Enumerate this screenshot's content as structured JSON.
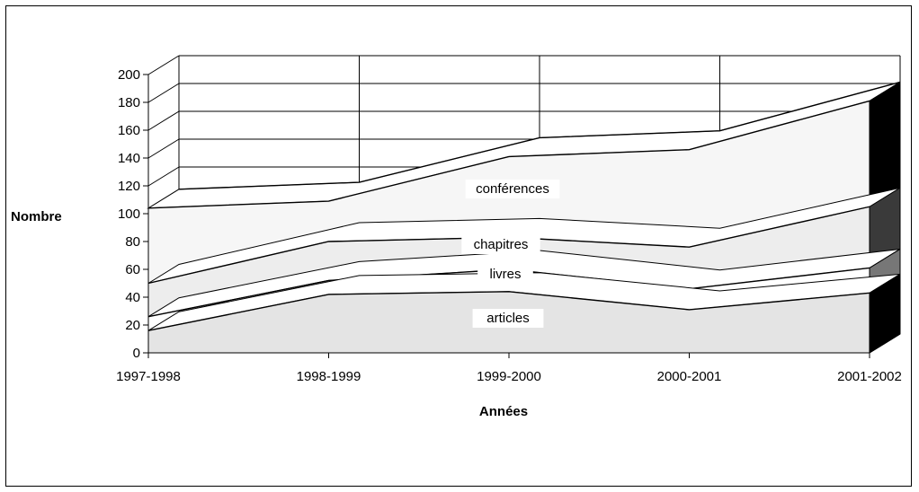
{
  "chart_data": {
    "type": "area",
    "stacked": true,
    "three_d": true,
    "categories": [
      "1997-1998",
      "1998-1999",
      "1999-2000",
      "2000-2001",
      "2001-2002"
    ],
    "series": [
      {
        "name": "articles",
        "values": [
          16,
          42,
          44,
          31,
          43
        ],
        "color": "#e4e4e4"
      },
      {
        "name": "livres",
        "values": [
          10,
          10,
          16,
          15,
          18
        ],
        "color": "#ffffff"
      },
      {
        "name": "chapitres",
        "values": [
          24,
          28,
          23,
          30,
          44
        ],
        "color": "#ededed"
      },
      {
        "name": "conférences",
        "values": [
          54,
          29,
          58,
          70,
          76
        ],
        "color": "#f6f6f6"
      }
    ],
    "yticks": [
      0,
      20,
      40,
      60,
      80,
      100,
      120,
      140,
      160,
      180,
      200
    ],
    "ylim": [
      0,
      200
    ],
    "xlabel": "Années",
    "ylabel": "Nombre",
    "grid": true,
    "side_colors": [
      "#000000",
      "#777777",
      "#3a3a3a",
      "#000000"
    ]
  }
}
